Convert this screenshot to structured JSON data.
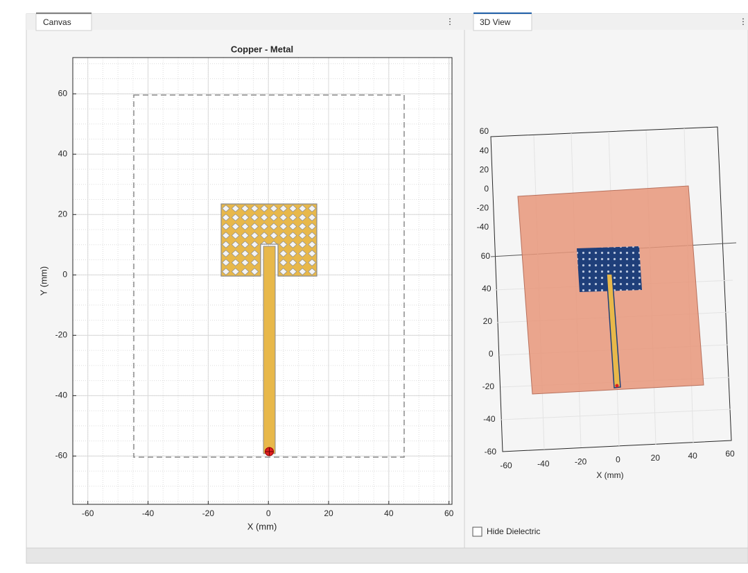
{
  "tabs": [
    "Canvas",
    "3D View"
  ],
  "canvas": {
    "title": "Copper - Metal",
    "x_label": "X (mm)",
    "y_label": "Y (mm)",
    "xlim": [
      -65,
      61
    ],
    "ylim": [
      -76,
      72
    ],
    "xticks": [
      -60,
      -40,
      -20,
      0,
      20,
      40,
      60
    ],
    "yticks": [
      -60,
      -40,
      -20,
      0,
      20,
      40,
      60
    ]
  },
  "view_3d": {
    "x_label": "X (mm)",
    "x_ticks": [
      -60,
      -40,
      -20,
      0,
      20,
      40,
      60
    ],
    "y_ticks": [
      60,
      40,
      20,
      0,
      -20,
      -40,
      -60
    ],
    "z_ticks": [
      60,
      40,
      20,
      0,
      -20,
      -40
    ]
  },
  "hide_dielectric": "Hide Dielectric"
}
